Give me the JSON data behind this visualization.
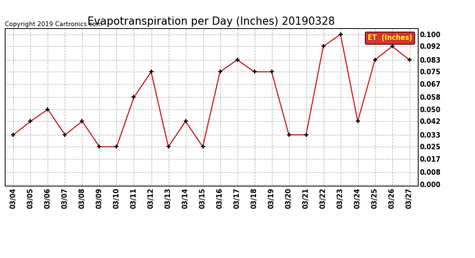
{
  "title": "Evapotranspiration per Day (Inches) 20190328",
  "copyright": "Copyright 2019 Cartronics.com",
  "legend_label": "ET  (Inches)",
  "legend_bg": "#cc0000",
  "legend_text_color": "#ffff00",
  "dates": [
    "03/04",
    "03/05",
    "03/06",
    "03/07",
    "03/08",
    "03/09",
    "03/10",
    "03/11",
    "03/12",
    "03/13",
    "03/14",
    "03/15",
    "03/16",
    "03/17",
    "03/18",
    "03/19",
    "03/20",
    "03/21",
    "03/22",
    "03/23",
    "03/24",
    "03/25",
    "03/26",
    "03/27"
  ],
  "values": [
    0.033,
    0.042,
    0.05,
    0.033,
    0.042,
    0.025,
    0.025,
    0.058,
    0.075,
    0.025,
    0.042,
    0.025,
    0.075,
    0.083,
    0.075,
    0.075,
    0.033,
    0.033,
    0.092,
    0.1,
    0.042,
    0.083,
    0.092,
    0.083
  ],
  "line_color": "#cc0000",
  "marker": "+",
  "marker_color": "#000000",
  "ylim": [
    -0.001,
    0.104
  ],
  "yticks": [
    0.0,
    0.008,
    0.017,
    0.025,
    0.033,
    0.042,
    0.05,
    0.058,
    0.067,
    0.075,
    0.083,
    0.092,
    0.1
  ],
  "background_color": "#ffffff",
  "grid_color": "#bbbbbb",
  "title_fontsize": 11,
  "tick_fontsize": 7,
  "copyright_fontsize": 6.5
}
